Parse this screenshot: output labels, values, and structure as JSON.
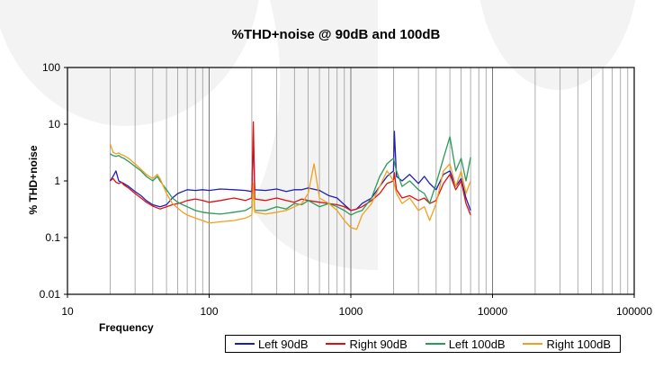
{
  "chart_data": {
    "type": "line",
    "title": "%THD+noise @ 90dB and 100dB",
    "xlabel": "Frequency",
    "ylabel": "% THD+noise",
    "xscale": "log",
    "yscale": "log",
    "xlim": [
      10,
      100000
    ],
    "ylim": [
      0.01,
      100
    ],
    "x_ticks": [
      "10",
      "100",
      "1000",
      "10000",
      "100000"
    ],
    "y_ticks": [
      "100",
      "10",
      "1",
      "0.1",
      "0.01"
    ],
    "grid": "vertical minor and major on x",
    "legend_position": "bottom",
    "series": [
      {
        "name": "Left 90dB",
        "color": "#1f1fb4",
        "x": [
          20,
          21,
          22,
          23,
          24,
          25,
          27,
          30,
          33,
          36,
          40,
          45,
          50,
          55,
          60,
          65,
          70,
          80,
          90,
          100,
          120,
          150,
          180,
          200,
          205,
          210,
          250,
          300,
          350,
          400,
          450,
          500,
          600,
          700,
          800,
          900,
          1000,
          1100,
          1200,
          1400,
          1600,
          1800,
          2000,
          2030,
          2100,
          2300,
          2600,
          3000,
          3300,
          3600,
          4000,
          4500,
          5000,
          5500,
          6000,
          6500,
          7000
        ],
        "y": [
          1.0,
          1.2,
          1.5,
          1.0,
          0.95,
          0.9,
          0.8,
          0.65,
          0.55,
          0.45,
          0.38,
          0.35,
          0.38,
          0.5,
          0.6,
          0.65,
          0.7,
          0.68,
          0.7,
          0.68,
          0.72,
          0.7,
          0.68,
          0.65,
          6.0,
          0.7,
          0.68,
          0.72,
          0.65,
          0.7,
          0.7,
          0.75,
          0.68,
          0.55,
          0.5,
          0.38,
          0.3,
          0.32,
          0.4,
          0.5,
          0.8,
          1.2,
          1.5,
          7.5,
          1.2,
          1.0,
          1.3,
          0.9,
          1.2,
          0.9,
          0.7,
          1.3,
          1.5,
          0.8,
          1.1,
          0.5,
          0.3
        ]
      },
      {
        "name": "Right 90dB",
        "color": "#e01010",
        "x": [
          20,
          21,
          22,
          23,
          24,
          25,
          27,
          30,
          33,
          36,
          40,
          45,
          50,
          55,
          60,
          65,
          70,
          80,
          90,
          100,
          120,
          150,
          180,
          200,
          205,
          210,
          250,
          300,
          350,
          400,
          450,
          500,
          600,
          700,
          800,
          900,
          1000,
          1100,
          1200,
          1400,
          1600,
          1800,
          2000,
          2030,
          2100,
          2300,
          2600,
          3000,
          3300,
          3600,
          4000,
          4500,
          5000,
          5500,
          6000,
          6500,
          7000
        ],
        "y": [
          1.0,
          1.1,
          0.95,
          0.9,
          0.95,
          0.85,
          0.75,
          0.6,
          0.5,
          0.42,
          0.36,
          0.32,
          0.35,
          0.38,
          0.4,
          0.42,
          0.45,
          0.48,
          0.45,
          0.42,
          0.45,
          0.5,
          0.45,
          0.5,
          11.0,
          0.48,
          0.45,
          0.5,
          0.45,
          0.42,
          0.48,
          0.45,
          0.42,
          0.4,
          0.38,
          0.35,
          0.3,
          0.32,
          0.35,
          0.45,
          0.6,
          0.9,
          1.0,
          1.4,
          0.7,
          0.5,
          0.55,
          0.45,
          0.5,
          0.4,
          0.45,
          0.9,
          1.3,
          0.7,
          1.0,
          0.4,
          0.25
        ]
      },
      {
        "name": "Left 100dB",
        "color": "#2a9a5a",
        "x": [
          20,
          21,
          22,
          23,
          24,
          25,
          27,
          30,
          33,
          36,
          40,
          43,
          45,
          50,
          55,
          60,
          65,
          70,
          80,
          90,
          100,
          120,
          150,
          180,
          200,
          205,
          210,
          250,
          300,
          350,
          400,
          450,
          500,
          600,
          700,
          800,
          900,
          1000,
          1100,
          1200,
          1400,
          1600,
          1800,
          2000,
          2100,
          2300,
          2600,
          3000,
          3300,
          3600,
          4000,
          4500,
          5000,
          5500,
          6000,
          6500,
          7000
        ],
        "y": [
          3.0,
          2.8,
          2.7,
          2.8,
          2.6,
          2.5,
          2.2,
          1.8,
          1.5,
          1.2,
          1.0,
          1.2,
          1.0,
          0.7,
          0.5,
          0.42,
          0.38,
          0.35,
          0.3,
          0.28,
          0.27,
          0.26,
          0.28,
          0.3,
          0.35,
          0.8,
          0.3,
          0.3,
          0.35,
          0.32,
          0.4,
          0.38,
          0.45,
          0.35,
          0.4,
          0.35,
          0.3,
          0.25,
          0.28,
          0.3,
          0.5,
          1.2,
          2.0,
          2.5,
          1.5,
          0.8,
          1.0,
          0.7,
          0.6,
          0.4,
          0.9,
          2.5,
          6.0,
          1.5,
          2.5,
          1.0,
          2.6
        ]
      },
      {
        "name": "Right 100dB",
        "color": "#f0a020",
        "x": [
          20,
          21,
          22,
          23,
          24,
          25,
          27,
          30,
          33,
          36,
          40,
          43,
          45,
          50,
          55,
          60,
          65,
          70,
          80,
          90,
          100,
          120,
          150,
          180,
          200,
          205,
          210,
          250,
          300,
          350,
          400,
          450,
          500,
          550,
          600,
          700,
          800,
          900,
          1000,
          1100,
          1200,
          1400,
          1600,
          1800,
          2000,
          2100,
          2300,
          2600,
          3000,
          3300,
          3600,
          4000,
          4500,
          5000,
          5500,
          6000,
          6500,
          7000
        ],
        "y": [
          4.5,
          3.2,
          3.0,
          3.1,
          2.9,
          2.8,
          2.5,
          2.0,
          1.6,
          1.3,
          1.1,
          1.3,
          1.1,
          0.6,
          0.4,
          0.33,
          0.28,
          0.25,
          0.22,
          0.2,
          0.18,
          0.19,
          0.2,
          0.22,
          0.25,
          0.9,
          0.28,
          0.26,
          0.28,
          0.3,
          0.35,
          0.4,
          0.6,
          2.0,
          0.5,
          0.4,
          0.3,
          0.2,
          0.15,
          0.14,
          0.25,
          0.4,
          0.8,
          1.5,
          1.0,
          0.6,
          0.4,
          0.5,
          0.3,
          0.35,
          0.2,
          0.4,
          1.5,
          2.0,
          0.8,
          1.5,
          0.6,
          1.0
        ]
      }
    ]
  }
}
